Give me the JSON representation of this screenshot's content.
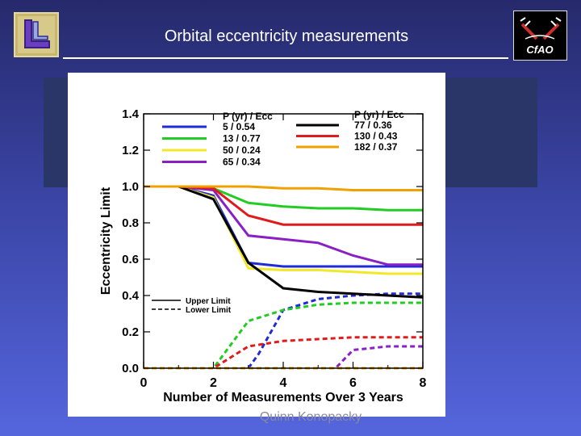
{
  "slide": {
    "title": "Orbital eccentricity measurements",
    "author": "Quinn Konopacky",
    "right_logo_text": "CfAO"
  },
  "chart_data": {
    "type": "line",
    "xlabel": "Number of Measurements Over 3 Years",
    "ylabel": "Eccentricity Limit",
    "xlim": [
      0,
      8
    ],
    "ylim": [
      0,
      1.4
    ],
    "xticks": [
      0,
      2,
      4,
      6,
      8
    ],
    "yticks": [
      0.0,
      0.2,
      0.4,
      0.6,
      0.8,
      1.0,
      1.2,
      1.4
    ],
    "ytick_labels": [
      "0.0",
      "0.2",
      "0.4",
      "0.6",
      "0.8",
      "1.0",
      "1.2",
      "1.4"
    ],
    "grid": false,
    "legend_header": "P (yr) / Ecc",
    "limit_legend": {
      "solid": "Upper Limit",
      "dashed": "Lower Limit"
    },
    "series": [
      {
        "name": "5 / 0.54",
        "color": "#1f2bd6",
        "upper": [
          [
            0,
            1.0
          ],
          [
            1,
            1.0
          ],
          [
            2,
            0.95
          ],
          [
            3,
            0.58
          ],
          [
            4,
            0.56
          ],
          [
            5,
            0.56
          ],
          [
            6,
            0.56
          ],
          [
            7,
            0.56
          ],
          [
            8,
            0.56
          ]
        ],
        "lower": [
          [
            0,
            0.0
          ],
          [
            3,
            0.0
          ],
          [
            3.3,
            0.08
          ],
          [
            4,
            0.32
          ],
          [
            5,
            0.38
          ],
          [
            6,
            0.4
          ],
          [
            7,
            0.41
          ],
          [
            8,
            0.41
          ]
        ]
      },
      {
        "name": "13 / 0.77",
        "color": "#22cc22",
        "upper": [
          [
            0,
            1.0
          ],
          [
            1,
            1.0
          ],
          [
            2,
            0.99
          ],
          [
            3,
            0.91
          ],
          [
            4,
            0.89
          ],
          [
            5,
            0.88
          ],
          [
            6,
            0.88
          ],
          [
            7,
            0.87
          ],
          [
            8,
            0.87
          ]
        ],
        "lower": [
          [
            0,
            0.0
          ],
          [
            2,
            0.0
          ],
          [
            3,
            0.26
          ],
          [
            4,
            0.32
          ],
          [
            5,
            0.35
          ],
          [
            6,
            0.36
          ],
          [
            7,
            0.36
          ],
          [
            8,
            0.36
          ]
        ]
      },
      {
        "name": "50 / 0.24",
        "color": "#f2e82a",
        "upper": [
          [
            0,
            1.0
          ],
          [
            1,
            1.0
          ],
          [
            2,
            0.94
          ],
          [
            3,
            0.55
          ],
          [
            4,
            0.54
          ],
          [
            5,
            0.54
          ],
          [
            6,
            0.53
          ],
          [
            7,
            0.52
          ],
          [
            8,
            0.52
          ]
        ],
        "lower": [
          [
            0,
            0.0
          ],
          [
            8,
            0.0
          ]
        ]
      },
      {
        "name": "65 / 0.34",
        "color": "#8a1fc4",
        "upper": [
          [
            0,
            1.0
          ],
          [
            1,
            1.0
          ],
          [
            2,
            0.98
          ],
          [
            3,
            0.73
          ],
          [
            4,
            0.71
          ],
          [
            5,
            0.69
          ],
          [
            6,
            0.62
          ],
          [
            7,
            0.57
          ],
          [
            8,
            0.57
          ]
        ],
        "lower": [
          [
            0,
            0.0
          ],
          [
            5.5,
            0.0
          ],
          [
            6,
            0.1
          ],
          [
            7,
            0.12
          ],
          [
            8,
            0.12
          ]
        ]
      },
      {
        "name": "77 / 0.36",
        "color": "#000000",
        "upper": [
          [
            0,
            1.0
          ],
          [
            1,
            1.0
          ],
          [
            2,
            0.93
          ],
          [
            3,
            0.58
          ],
          [
            4,
            0.44
          ],
          [
            5,
            0.42
          ],
          [
            6,
            0.41
          ],
          [
            7,
            0.4
          ],
          [
            8,
            0.39
          ]
        ],
        "lower": [
          [
            0,
            0.0
          ],
          [
            8,
            0.0
          ]
        ]
      },
      {
        "name": "130 / 0.43",
        "color": "#e01b1b",
        "upper": [
          [
            0,
            1.0
          ],
          [
            1,
            1.0
          ],
          [
            2,
            0.99
          ],
          [
            3,
            0.84
          ],
          [
            4,
            0.79
          ],
          [
            5,
            0.79
          ],
          [
            6,
            0.79
          ],
          [
            7,
            0.79
          ],
          [
            8,
            0.79
          ]
        ],
        "lower": [
          [
            0,
            0.0
          ],
          [
            2,
            0.0
          ],
          [
            3,
            0.12
          ],
          [
            4,
            0.15
          ],
          [
            5,
            0.16
          ],
          [
            6,
            0.17
          ],
          [
            7,
            0.17
          ],
          [
            8,
            0.17
          ]
        ]
      },
      {
        "name": "182 / 0.37",
        "color": "#f0a000",
        "upper": [
          [
            0,
            1.0
          ],
          [
            1,
            1.0
          ],
          [
            2,
            1.0
          ],
          [
            3,
            1.0
          ],
          [
            4,
            0.99
          ],
          [
            5,
            0.99
          ],
          [
            6,
            0.98
          ],
          [
            7,
            0.98
          ],
          [
            8,
            0.98
          ]
        ],
        "lower": [
          [
            0,
            0.0
          ],
          [
            8,
            0.0
          ]
        ]
      }
    ]
  }
}
